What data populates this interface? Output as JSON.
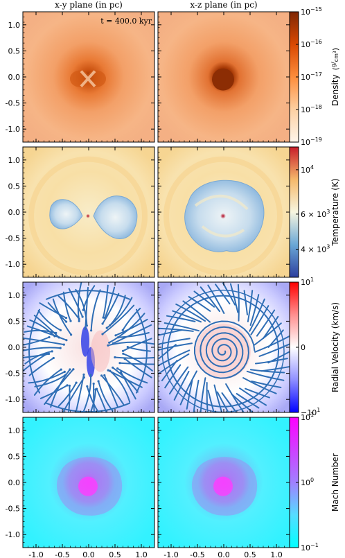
{
  "figure": {
    "column_titles": [
      "x-y plane (in pc)",
      "x-z plane (in pc)"
    ],
    "time_annotation": "t = 400.0 kyr",
    "axis_ticks": [
      "-1.0",
      "-0.5",
      "0.0",
      "0.5",
      "1.0"
    ],
    "axis_tick_values": [
      -1.0,
      -0.5,
      0.0,
      0.5,
      1.0
    ],
    "axis_range": [
      -1.25,
      1.25
    ],
    "rows": [
      {
        "name": "density",
        "colorbar_label": "Density",
        "colorbar_unit_num": "g",
        "colorbar_unit_den": "cm",
        "colorbar_unit_exp": "3",
        "colorbar_ticks": [
          {
            "base": "10",
            "exp": "−15",
            "value": 1e-15
          },
          {
            "base": "10",
            "exp": "−16",
            "value": 1e-16
          },
          {
            "base": "10",
            "exp": "−17",
            "value": 1e-17
          },
          {
            "base": "10",
            "exp": "−18",
            "value": 1e-18
          },
          {
            "base": "10",
            "exp": "−19",
            "value": 1e-19
          }
        ],
        "colormap": [
          "#fff5eb",
          "#fdd0a2",
          "#fd8d3c",
          "#d94801",
          "#7f2704"
        ]
      },
      {
        "name": "temperature",
        "colorbar_label": "Temperature  (K)",
        "colorbar_ticks": [
          {
            "base": "10",
            "exp": "4",
            "value": 10000
          },
          {
            "base": "6 × 10",
            "exp": "3",
            "value": 6000
          },
          {
            "base": "4 × 10",
            "exp": "3",
            "value": 4000
          }
        ],
        "colormap": [
          "#2c3e9e",
          "#6aa7d6",
          "#f7f6e0",
          "#f5b86a",
          "#c81d2a"
        ]
      },
      {
        "name": "radial-velocity",
        "colorbar_label": "Radial Velocity  (km/s)",
        "colorbar_ticks": [
          {
            "base": "10",
            "exp": "1",
            "value": 10
          },
          {
            "base": "0",
            "exp": "",
            "value": 0
          },
          {
            "base": "−10",
            "exp": "1",
            "value": -10
          }
        ],
        "colormap": [
          "#0000ff",
          "#8f8fff",
          "#ffffff",
          "#ff8f8f",
          "#ff0000"
        ],
        "streamline_color": "#2f6eb5"
      },
      {
        "name": "mach-number",
        "colorbar_label": "Mach Number",
        "colorbar_ticks": [
          {
            "base": "10",
            "exp": "1",
            "value": 10
          },
          {
            "base": "10",
            "exp": "0",
            "value": 1
          },
          {
            "base": "10",
            "exp": "−1",
            "value": 0.1
          }
        ],
        "colormap": [
          "#00ffff",
          "#55ddff",
          "#a080ff",
          "#cf40ff",
          "#ff00ff"
        ]
      }
    ]
  }
}
